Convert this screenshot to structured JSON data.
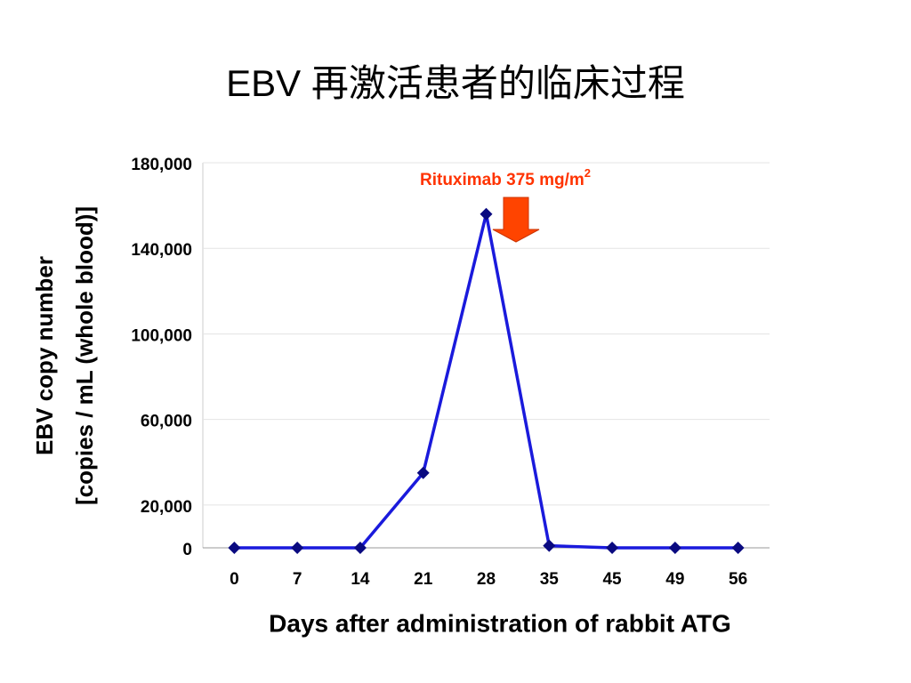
{
  "chart_data": {
    "type": "line",
    "title": "EBV 再激活患者的临床过程",
    "y_label_lines": [
      "EBV copy number",
      "[copies / mL (whole blood)]"
    ],
    "x_label": "Days after administration of rabbit ATG",
    "annotation": "Rituximab 375 mg/m",
    "annotation_sup": "2",
    "categories": [
      "0",
      "7",
      "14",
      "21",
      "28",
      "35",
      "45",
      "49",
      "56"
    ],
    "series": [
      {
        "color": "#1a1adc",
        "marker_color": "#0a0a80",
        "values": [
          0,
          0,
          0,
          35000,
          156000,
          1000,
          0,
          0,
          0
        ]
      }
    ],
    "ylim": [
      0,
      180000
    ],
    "yticks": [
      0,
      {
        "value": 20000,
        "label": "20,000"
      },
      {
        "value": 60000,
        "label": "60,000"
      },
      {
        "value": 100000,
        "label": "100,000"
      },
      {
        "value": 140000,
        "label": "140,000"
      },
      {
        "value": 180000,
        "label": "180,000"
      }
    ],
    "grid": true
  }
}
